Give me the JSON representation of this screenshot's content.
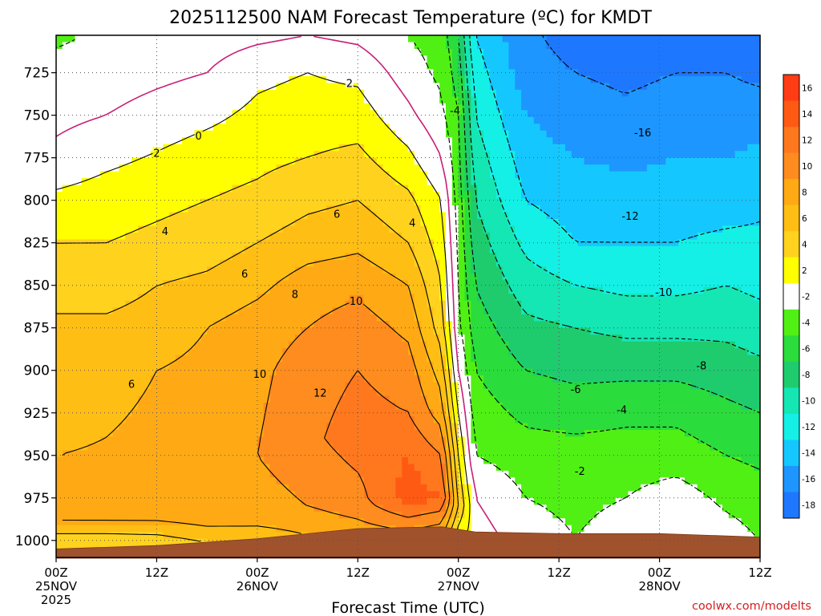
{
  "chart_data": {
    "type": "heatmap",
    "title": "2025112500 NAM Forecast Temperature (ºC) for KMDT",
    "xlabel": "Forecast Time (UTC)",
    "ylabel": "",
    "credit": "coolwx.com/modelts",
    "x_unit": "hours since 2025-11-25 00Z",
    "xlim": [
      0,
      84
    ],
    "x_ticks": [
      {
        "value": 0,
        "label": "00Z",
        "date": "25NOV",
        "year": "2025"
      },
      {
        "value": 12,
        "label": "12Z"
      },
      {
        "value": 24,
        "label": "00Z",
        "date": "26NOV"
      },
      {
        "value": 36,
        "label": "12Z"
      },
      {
        "value": 48,
        "label": "00Z",
        "date": "27NOV"
      },
      {
        "value": 60,
        "label": "12Z"
      },
      {
        "value": 72,
        "label": "00Z",
        "date": "28NOV"
      },
      {
        "value": 84,
        "label": "12Z"
      }
    ],
    "y_unit": "hPa",
    "ylim": [
      1010,
      703
    ],
    "y_ticks": [
      725,
      750,
      775,
      800,
      825,
      850,
      875,
      900,
      925,
      950,
      975,
      1000
    ],
    "grid": true,
    "colorbar": {
      "levels": [
        16,
        14,
        12,
        10,
        8,
        6,
        4,
        2,
        -2,
        -4,
        -6,
        -8,
        -10,
        -12,
        -14,
        -16,
        -18
      ],
      "colors": [
        "#ff3c14",
        "#ff5a14",
        "#ff781e",
        "#ff8c1e",
        "#ffaa14",
        "#ffbe14",
        "#ffd21e",
        "#ffff00",
        "#ffffff",
        "#50f014",
        "#2adc3c",
        "#1ecc6e",
        "#14e6b4",
        "#14f0e6",
        "#14c8ff",
        "#1e96ff",
        "#1e78ff"
      ]
    },
    "isotherms": [
      {
        "value": 0,
        "label": "0",
        "color": "#c81e78"
      },
      {
        "value": 2,
        "label": "2"
      },
      {
        "value": 4,
        "label": "4"
      },
      {
        "value": 6,
        "label": "6"
      },
      {
        "value": 8,
        "label": "8"
      },
      {
        "value": 10,
        "label": "10"
      },
      {
        "value": 12,
        "label": "12"
      },
      {
        "value": -2,
        "label": "-2"
      },
      {
        "value": -4,
        "label": "-4"
      },
      {
        "value": -6,
        "label": "-6"
      },
      {
        "value": -8,
        "label": "-8"
      },
      {
        "value": -10,
        "label": "-10"
      },
      {
        "value": -12,
        "label": "-12"
      },
      {
        "value": -16,
        "label": "-16"
      }
    ],
    "contour_labels": [
      {
        "text": "0",
        "x": 17,
        "p": 762
      },
      {
        "text": "2",
        "x": 12,
        "p": 772
      },
      {
        "text": "2",
        "x": 35,
        "p": 731
      },
      {
        "text": "4",
        "x": 13,
        "p": 818
      },
      {
        "text": "4",
        "x": 42.5,
        "p": 813
      },
      {
        "text": "6",
        "x": 22.5,
        "p": 843
      },
      {
        "text": "6",
        "x": 33.5,
        "p": 808
      },
      {
        "text": "6",
        "x": 9,
        "p": 908
      },
      {
        "text": "8",
        "x": 28.5,
        "p": 855
      },
      {
        "text": "10",
        "x": 35.8,
        "p": 859
      },
      {
        "text": "10",
        "x": 24.3,
        "p": 902
      },
      {
        "text": "12",
        "x": 31.5,
        "p": 913
      },
      {
        "text": "-4",
        "x": 47.6,
        "p": 747
      },
      {
        "text": "-16",
        "x": 70,
        "p": 760
      },
      {
        "text": "-12",
        "x": 68.5,
        "p": 809
      },
      {
        "text": "-10",
        "x": 72.5,
        "p": 854
      },
      {
        "text": "-8",
        "x": 77,
        "p": 897
      },
      {
        "text": "-6",
        "x": 62,
        "p": 911
      },
      {
        "text": "-4",
        "x": 67.5,
        "p": 923
      },
      {
        "text": "-2",
        "x": 62.5,
        "p": 959
      }
    ],
    "temperature_field": [
      {
        "t": 0,
        "profile": [
          [
            1002,
            4
          ],
          [
            990,
            8
          ],
          [
            950,
            8
          ],
          [
            900,
            7
          ],
          [
            875,
            6.5
          ],
          [
            850,
            5
          ],
          [
            825,
            4
          ],
          [
            800,
            2.5
          ],
          [
            775,
            0.5
          ],
          [
            750,
            -0.5
          ],
          [
            725,
            -1
          ],
          [
            703,
            -2.5
          ]
        ]
      },
      {
        "t": 6,
        "profile": [
          [
            1002,
            4
          ],
          [
            990,
            8
          ],
          [
            955,
            8.2
          ],
          [
            900,
            7.5
          ],
          [
            875,
            6.5
          ],
          [
            850,
            5
          ],
          [
            825,
            4
          ],
          [
            800,
            3
          ],
          [
            775,
            1.5
          ],
          [
            750,
            0
          ],
          [
            725,
            -1
          ],
          [
            703,
            -1.5
          ]
        ]
      },
      {
        "t": 12,
        "profile": [
          [
            1000,
            5
          ],
          [
            990,
            8
          ],
          [
            960,
            8.5
          ],
          [
            900,
            8
          ],
          [
            875,
            7
          ],
          [
            850,
            6
          ],
          [
            825,
            4.5
          ],
          [
            800,
            3.5
          ],
          [
            775,
            2.2
          ],
          [
            750,
            0.8
          ],
          [
            725,
            -0.5
          ],
          [
            703,
            -1.5
          ]
        ]
      },
      {
        "t": 18,
        "profile": [
          [
            1000,
            6
          ],
          [
            990,
            8.5
          ],
          [
            950,
            9
          ],
          [
            900,
            8.5
          ],
          [
            875,
            8
          ],
          [
            850,
            6.5
          ],
          [
            825,
            5
          ],
          [
            800,
            4
          ],
          [
            775,
            3
          ],
          [
            750,
            1.5
          ],
          [
            725,
            0
          ],
          [
            703,
            -1
          ]
        ]
      },
      {
        "t": 24,
        "profile": [
          [
            998,
            7
          ],
          [
            985,
            9
          ],
          [
            950,
            10
          ],
          [
            900,
            9.5
          ],
          [
            875,
            9
          ],
          [
            850,
            7.5
          ],
          [
            825,
            6
          ],
          [
            800,
            4.5
          ],
          [
            775,
            3.5
          ],
          [
            750,
            2.5
          ],
          [
            725,
            1.5
          ],
          [
            703,
            -0.5
          ]
        ]
      },
      {
        "t": 30,
        "profile": [
          [
            996,
            8
          ],
          [
            980,
            10
          ],
          [
            940,
            11.5
          ],
          [
            900,
            11
          ],
          [
            875,
            10
          ],
          [
            850,
            9
          ],
          [
            825,
            7
          ],
          [
            800,
            5.5
          ],
          [
            775,
            4
          ],
          [
            750,
            3
          ],
          [
            725,
            2
          ],
          [
            703,
            0
          ]
        ]
      },
      {
        "t": 36,
        "profile": [
          [
            995,
            9
          ],
          [
            980,
            11
          ],
          [
            940,
            13
          ],
          [
            900,
            12
          ],
          [
            875,
            11
          ],
          [
            850,
            9.5
          ],
          [
            825,
            7.5
          ],
          [
            800,
            6
          ],
          [
            775,
            4.5
          ],
          [
            750,
            3
          ],
          [
            725,
            1.5
          ],
          [
            703,
            -0.5
          ]
        ]
      },
      {
        "t": 42,
        "profile": [
          [
            994,
            10
          ],
          [
            975,
            15
          ],
          [
            950,
            14
          ],
          [
            925,
            12
          ],
          [
            900,
            11
          ],
          [
            875,
            9.5
          ],
          [
            850,
            8
          ],
          [
            825,
            6
          ],
          [
            800,
            4.5
          ],
          [
            775,
            2.5
          ],
          [
            750,
            0.5
          ],
          [
            725,
            -1
          ],
          [
            703,
            -2
          ]
        ]
      },
      {
        "t": 46,
        "profile": [
          [
            994,
            9
          ],
          [
            975,
            14
          ],
          [
            950,
            12
          ],
          [
            925,
            9
          ],
          [
            900,
            7
          ],
          [
            875,
            5
          ],
          [
            850,
            4
          ],
          [
            825,
            3
          ],
          [
            800,
            2
          ],
          [
            775,
            0
          ],
          [
            750,
            -1.5
          ],
          [
            725,
            -2.5
          ],
          [
            703,
            -3
          ]
        ]
      },
      {
        "t": 48,
        "profile": [
          [
            997,
            3
          ],
          [
            980,
            6
          ],
          [
            950,
            4
          ],
          [
            925,
            2
          ],
          [
            900,
            0
          ],
          [
            875,
            -1.5
          ],
          [
            850,
            -2
          ],
          [
            825,
            -2.5
          ],
          [
            800,
            -3
          ],
          [
            775,
            -3.5
          ],
          [
            750,
            -4
          ],
          [
            725,
            -5
          ],
          [
            703,
            -6
          ]
        ]
      },
      {
        "t": 50,
        "profile": [
          [
            998,
            1
          ],
          [
            975,
            0
          ],
          [
            950,
            -2
          ],
          [
            925,
            -3
          ],
          [
            900,
            -4
          ],
          [
            875,
            -5
          ],
          [
            850,
            -6
          ],
          [
            825,
            -7
          ],
          [
            800,
            -8
          ],
          [
            775,
            -9
          ],
          [
            750,
            -10
          ],
          [
            725,
            -11
          ],
          [
            703,
            -12
          ]
        ]
      },
      {
        "t": 56,
        "profile": [
          [
            999,
            -1
          ],
          [
            975,
            -2
          ],
          [
            950,
            -3
          ],
          [
            925,
            -4.5
          ],
          [
            900,
            -6
          ],
          [
            875,
            -7.5
          ],
          [
            850,
            -9
          ],
          [
            825,
            -10.5
          ],
          [
            800,
            -12
          ],
          [
            775,
            -13
          ],
          [
            750,
            -14
          ],
          [
            725,
            -15
          ],
          [
            703,
            -15.5
          ]
        ]
      },
      {
        "t": 62,
        "profile": [
          [
            999,
            -2
          ],
          [
            975,
            -2.5
          ],
          [
            950,
            -3
          ],
          [
            925,
            -5
          ],
          [
            900,
            -6.5
          ],
          [
            875,
            -8
          ],
          [
            850,
            -10
          ],
          [
            825,
            -12
          ],
          [
            800,
            -13
          ],
          [
            775,
            -14
          ],
          [
            750,
            -15
          ],
          [
            725,
            -16
          ],
          [
            703,
            -17
          ]
        ]
      },
      {
        "t": 68,
        "profile": [
          [
            999,
            -1
          ],
          [
            975,
            -2
          ],
          [
            950,
            -3
          ],
          [
            925,
            -4.5
          ],
          [
            900,
            -6.5
          ],
          [
            875,
            -8.5
          ],
          [
            850,
            -10.5
          ],
          [
            825,
            -12
          ],
          [
            800,
            -13
          ],
          [
            775,
            -14.5
          ],
          [
            750,
            -15.5
          ],
          [
            725,
            -16.5
          ],
          [
            703,
            -17.5
          ]
        ]
      },
      {
        "t": 74,
        "profile": [
          [
            1000,
            0
          ],
          [
            975,
            -1
          ],
          [
            950,
            -3
          ],
          [
            925,
            -4.5
          ],
          [
            900,
            -6.5
          ],
          [
            875,
            -8.5
          ],
          [
            850,
            -10.5
          ],
          [
            825,
            -12
          ],
          [
            800,
            -13
          ],
          [
            775,
            -14
          ],
          [
            750,
            -15
          ],
          [
            725,
            -16
          ],
          [
            703,
            -17
          ]
        ]
      },
      {
        "t": 80,
        "profile": [
          [
            1000,
            -1
          ],
          [
            975,
            -2.5
          ],
          [
            950,
            -4
          ],
          [
            925,
            -5.5
          ],
          [
            900,
            -7
          ],
          [
            875,
            -8.5
          ],
          [
            850,
            -10
          ],
          [
            825,
            -11.5
          ],
          [
            800,
            -13
          ],
          [
            775,
            -14
          ],
          [
            750,
            -15
          ],
          [
            725,
            -16
          ],
          [
            703,
            -17
          ]
        ]
      },
      {
        "t": 84,
        "profile": [
          [
            1001,
            -2
          ],
          [
            975,
            -3
          ],
          [
            950,
            -4.5
          ],
          [
            925,
            -6
          ],
          [
            900,
            -7.5
          ],
          [
            875,
            -9
          ],
          [
            850,
            -10.5
          ],
          [
            825,
            -11.5
          ],
          [
            800,
            -12.5
          ],
          [
            775,
            -13.5
          ],
          [
            750,
            -15
          ],
          [
            725,
            -16.5
          ],
          [
            703,
            -17.5
          ]
        ]
      }
    ],
    "surface_pressure": [
      [
        0,
        1005
      ],
      [
        12,
        1003
      ],
      [
        24,
        999
      ],
      [
        36,
        993
      ],
      [
        46,
        992
      ],
      [
        50,
        995
      ],
      [
        60,
        996
      ],
      [
        72,
        996
      ],
      [
        84,
        998
      ]
    ]
  }
}
